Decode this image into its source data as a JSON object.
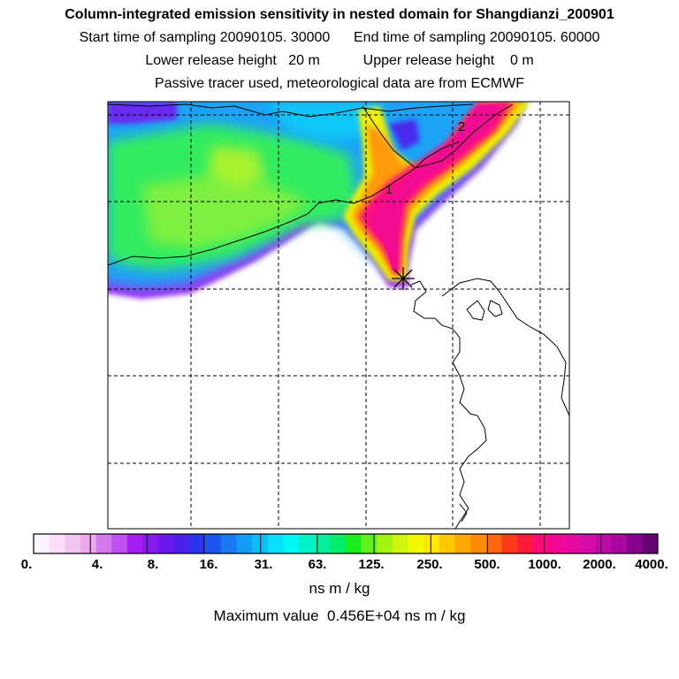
{
  "header": {
    "title": "Column-integrated emission sensitivity in nested domain for Shangdianzi_200901",
    "line2": "Start time of sampling 20090105. 30000      End time of sampling 20090105. 60000",
    "line3": "Lower release height   20 m           Upper release height    0 m",
    "line4": "Passive tracer used, meteorological data are from ECMWF"
  },
  "map": {
    "markers": [
      {
        "label": "1"
      },
      {
        "label": "2"
      }
    ],
    "release_site_icon": "star-icon"
  },
  "colorbar": {
    "tick_labels": [
      "0.",
      "4.",
      "8.",
      "16.",
      "31.",
      "63.",
      "125.",
      "250.",
      "500.",
      "1000.",
      "2000.",
      "4000."
    ],
    "colors": [
      "#fdf3fd",
      "#f9ddf9",
      "#f2c4f2",
      "#eda8ef",
      "#d379ea",
      "#bf4ff0",
      "#a81ef2",
      "#8a18f0",
      "#6a18ee",
      "#4b1fec",
      "#2a36ec",
      "#1d55ef",
      "#1a78f2",
      "#139bf6",
      "#0dbdf8",
      "#08dffc",
      "#00f8f4",
      "#00f4c8",
      "#00f09c",
      "#00ec6a",
      "#1aec1c",
      "#62f01a",
      "#a2f212",
      "#cff60c",
      "#f2f800",
      "#ffe800",
      "#ffc800",
      "#ffa800",
      "#ff8a08",
      "#ff6410",
      "#ff3a18",
      "#ff1a3c",
      "#ff0a78",
      "#f40896",
      "#e60aa0",
      "#d60ca8",
      "#c00aa6",
      "#a808a0",
      "#88048e",
      "#660474"
    ]
  },
  "units": "ns m / kg",
  "max_value": "Maximum value  0.456E+04 ns m / kg"
}
